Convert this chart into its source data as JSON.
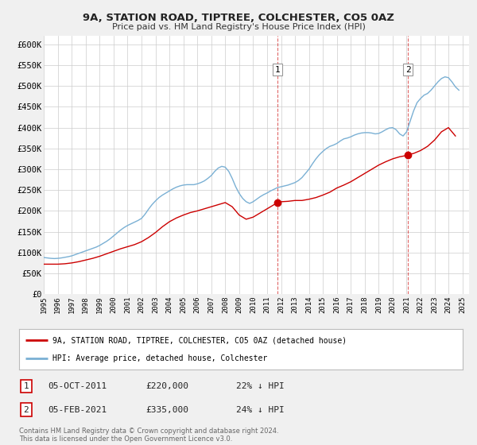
{
  "title": "9A, STATION ROAD, TIPTREE, COLCHESTER, CO5 0AZ",
  "subtitle": "Price paid vs. HM Land Registry's House Price Index (HPI)",
  "xlim": [
    1995.0,
    2025.5
  ],
  "ylim": [
    0,
    620000
  ],
  "yticks": [
    0,
    50000,
    100000,
    150000,
    200000,
    250000,
    300000,
    350000,
    400000,
    450000,
    500000,
    550000,
    600000
  ],
  "ytick_labels": [
    "£0",
    "£50K",
    "£100K",
    "£150K",
    "£200K",
    "£250K",
    "£300K",
    "£350K",
    "£400K",
    "£450K",
    "£500K",
    "£550K",
    "£600K"
  ],
  "xticks": [
    1995,
    1996,
    1997,
    1998,
    1999,
    2000,
    2001,
    2002,
    2003,
    2004,
    2005,
    2006,
    2007,
    2008,
    2009,
    2010,
    2011,
    2012,
    2013,
    2014,
    2015,
    2016,
    2017,
    2018,
    2019,
    2020,
    2021,
    2022,
    2023,
    2024,
    2025
  ],
  "background_color": "#f0f0f0",
  "plot_bg_color": "#ffffff",
  "grid_color": "#cccccc",
  "red_line_color": "#cc0000",
  "blue_line_color": "#7ab0d4",
  "marker1_x": 2011.76,
  "marker1_y": 220000,
  "marker2_x": 2021.09,
  "marker2_y": 335000,
  "vline1_x": 2011.76,
  "vline2_x": 2021.09,
  "annotation1_label": "1",
  "annotation2_label": "2",
  "legend_label_red": "9A, STATION ROAD, TIPTREE, COLCHESTER, CO5 0AZ (detached house)",
  "legend_label_blue": "HPI: Average price, detached house, Colchester",
  "table_rows": [
    {
      "num": "1",
      "date": "05-OCT-2011",
      "price": "£220,000",
      "hpi": "22% ↓ HPI"
    },
    {
      "num": "2",
      "date": "05-FEB-2021",
      "price": "£335,000",
      "hpi": "24% ↓ HPI"
    }
  ],
  "footer": "Contains HM Land Registry data © Crown copyright and database right 2024.\nThis data is licensed under the Open Government Licence v3.0.",
  "hpi_x": [
    1995.0,
    1995.25,
    1995.5,
    1995.75,
    1996.0,
    1996.25,
    1996.5,
    1996.75,
    1997.0,
    1997.25,
    1997.5,
    1997.75,
    1998.0,
    1998.25,
    1998.5,
    1998.75,
    1999.0,
    1999.25,
    1999.5,
    1999.75,
    2000.0,
    2000.25,
    2000.5,
    2000.75,
    2001.0,
    2001.25,
    2001.5,
    2001.75,
    2002.0,
    2002.25,
    2002.5,
    2002.75,
    2003.0,
    2003.25,
    2003.5,
    2003.75,
    2004.0,
    2004.25,
    2004.5,
    2004.75,
    2005.0,
    2005.25,
    2005.5,
    2005.75,
    2006.0,
    2006.25,
    2006.5,
    2006.75,
    2007.0,
    2007.25,
    2007.5,
    2007.75,
    2008.0,
    2008.25,
    2008.5,
    2008.75,
    2009.0,
    2009.25,
    2009.5,
    2009.75,
    2010.0,
    2010.25,
    2010.5,
    2010.75,
    2011.0,
    2011.25,
    2011.5,
    2011.75,
    2012.0,
    2012.25,
    2012.5,
    2012.75,
    2013.0,
    2013.25,
    2013.5,
    2013.75,
    2014.0,
    2014.25,
    2014.5,
    2014.75,
    2015.0,
    2015.25,
    2015.5,
    2015.75,
    2016.0,
    2016.25,
    2016.5,
    2016.75,
    2017.0,
    2017.25,
    2017.5,
    2017.75,
    2018.0,
    2018.25,
    2018.5,
    2018.75,
    2019.0,
    2019.25,
    2019.5,
    2019.75,
    2020.0,
    2020.25,
    2020.5,
    2020.75,
    2021.0,
    2021.25,
    2021.5,
    2021.75,
    2022.0,
    2022.25,
    2022.5,
    2022.75,
    2023.0,
    2023.25,
    2023.5,
    2023.75,
    2024.0,
    2024.25,
    2024.5,
    2024.75
  ],
  "hpi_y": [
    88000,
    87000,
    86000,
    85500,
    86000,
    87000,
    88500,
    90000,
    92000,
    95000,
    98000,
    101000,
    104000,
    107000,
    110000,
    113000,
    117000,
    122000,
    127000,
    133000,
    140000,
    147000,
    154000,
    160000,
    165000,
    169000,
    173000,
    177000,
    182000,
    192000,
    204000,
    215000,
    224000,
    232000,
    238000,
    243000,
    248000,
    253000,
    257000,
    260000,
    262000,
    263000,
    263000,
    263000,
    265000,
    268000,
    272000,
    278000,
    285000,
    295000,
    303000,
    307000,
    305000,
    295000,
    278000,
    258000,
    242000,
    230000,
    222000,
    218000,
    222000,
    228000,
    234000,
    239000,
    243000,
    248000,
    252000,
    256000,
    258000,
    260000,
    262000,
    265000,
    268000,
    273000,
    280000,
    290000,
    300000,
    313000,
    325000,
    335000,
    343000,
    350000,
    355000,
    358000,
    362000,
    368000,
    373000,
    375000,
    378000,
    382000,
    385000,
    387000,
    388000,
    388000,
    387000,
    385000,
    386000,
    390000,
    395000,
    399000,
    400000,
    395000,
    385000,
    380000,
    390000,
    415000,
    440000,
    460000,
    470000,
    478000,
    482000,
    490000,
    500000,
    510000,
    518000,
    522000,
    520000,
    510000,
    498000,
    490000
  ],
  "red_x": [
    1995.0,
    1995.5,
    1996.0,
    1996.5,
    1997.0,
    1997.5,
    1998.0,
    1998.5,
    1999.0,
    1999.5,
    2000.0,
    2000.5,
    2001.0,
    2001.5,
    2002.0,
    2002.5,
    2003.0,
    2003.5,
    2004.0,
    2004.5,
    2005.0,
    2005.5,
    2006.0,
    2006.5,
    2007.0,
    2007.5,
    2008.0,
    2008.5,
    2009.0,
    2009.5,
    2010.0,
    2010.5,
    2011.0,
    2011.5,
    2011.76,
    2012.0,
    2012.5,
    2013.0,
    2013.5,
    2014.0,
    2014.5,
    2015.0,
    2015.5,
    2016.0,
    2016.5,
    2017.0,
    2017.5,
    2018.0,
    2018.5,
    2019.0,
    2019.5,
    2020.0,
    2020.5,
    2021.0,
    2021.09,
    2021.5,
    2022.0,
    2022.5,
    2023.0,
    2023.5,
    2024.0,
    2024.5
  ],
  "red_y": [
    72000,
    72000,
    72000,
    73000,
    75000,
    78000,
    82000,
    86000,
    91000,
    97000,
    103000,
    109000,
    114000,
    119000,
    126000,
    136000,
    148000,
    162000,
    174000,
    183000,
    190000,
    196000,
    200000,
    205000,
    210000,
    215000,
    220000,
    210000,
    190000,
    180000,
    185000,
    195000,
    205000,
    215000,
    220000,
    222000,
    223000,
    225000,
    225000,
    228000,
    232000,
    238000,
    245000,
    255000,
    262000,
    270000,
    280000,
    290000,
    300000,
    310000,
    318000,
    325000,
    330000,
    333000,
    335000,
    338000,
    345000,
    355000,
    370000,
    390000,
    400000,
    380000
  ]
}
